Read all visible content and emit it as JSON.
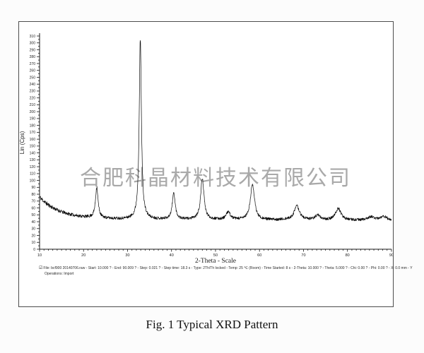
{
  "page": {
    "background": "#fcfcfc"
  },
  "figure": {
    "caption": "Fig. 1 Typical XRD Pattern"
  },
  "watermark": {
    "text": "合肥科晶材料技术有限公司",
    "color": "#a9a9a9"
  },
  "metadata": {
    "checkbox_glyph": "☑",
    "scan_line": "File: bcf900 20140706.raw - Start: 10.000 ? - End: 90.009 ? - Step: 0.021 ? - Step time: 18.3 s - Type: 2Th/Th locked - Temp: 25 ℃ (Room) - Time Started: 8 s - 2-Theta: 10.000 ? - Theta: 5.000 ? - Chi: 0.00 ? - Phi: 0.00 ? - X: 0.0 mm - Y",
    "operations_line": "Operations: Import"
  },
  "chart_data": {
    "type": "line",
    "title": "",
    "xlabel": "2-Theta - Scale",
    "ylabel": "Lin (Cps)",
    "xlim": [
      10,
      90.009
    ],
    "ylim": [
      0,
      310
    ],
    "x_major_tick": 10,
    "x_minor_tick": 1,
    "y_major_tick": 10,
    "y_minor_tick": 5,
    "grid": "off",
    "curve_color": "#0a0a0a",
    "axis_color": "#1a1a1a",
    "background_signal": {
      "baseline_cps": 44,
      "decay_amplitude_cps": 32,
      "decay_scale_deg": 4.5,
      "slope_cps_per_deg": -0.03
    },
    "noise_cps": 2.0,
    "noise_seed": 11,
    "sample_step_deg": 0.05,
    "peaks": [
      {
        "two_theta_deg": 23.0,
        "intensity_cps": 45,
        "hwhm_deg": 0.35
      },
      {
        "two_theta_deg": 32.9,
        "intensity_cps": 262,
        "hwhm_deg": 0.3
      },
      {
        "two_theta_deg": 40.5,
        "intensity_cps": 38,
        "hwhm_deg": 0.4
      },
      {
        "two_theta_deg": 47.0,
        "intensity_cps": 60,
        "hwhm_deg": 0.45
      },
      {
        "two_theta_deg": 52.9,
        "intensity_cps": 11,
        "hwhm_deg": 0.55
      },
      {
        "two_theta_deg": 58.4,
        "intensity_cps": 52,
        "hwhm_deg": 0.55
      },
      {
        "two_theta_deg": 68.5,
        "intensity_cps": 20,
        "hwhm_deg": 0.75
      },
      {
        "two_theta_deg": 73.2,
        "intensity_cps": 7,
        "hwhm_deg": 0.7
      },
      {
        "two_theta_deg": 77.9,
        "intensity_cps": 17,
        "hwhm_deg": 0.75
      },
      {
        "two_theta_deg": 85.3,
        "intensity_cps": 5,
        "hwhm_deg": 0.9
      },
      {
        "two_theta_deg": 88.2,
        "intensity_cps": 6,
        "hwhm_deg": 0.9
      }
    ]
  }
}
